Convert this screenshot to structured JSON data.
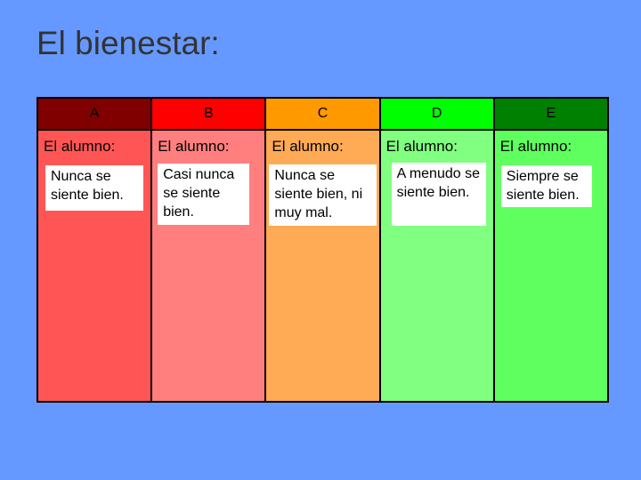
{
  "slide": {
    "title": "El bienestar:"
  },
  "columns": [
    {
      "letter": "A",
      "subtitle": "El alumno:",
      "description": "Nunca se siente bien.",
      "header_color": "#800000",
      "body_color": "#ff5555"
    },
    {
      "letter": "B",
      "subtitle": "El alumno:",
      "description": "Casi nunca se siente bien.",
      "header_color": "#ff0000",
      "body_color": "#ff7f7f"
    },
    {
      "letter": "C",
      "subtitle": "El alumno:",
      "description": "Nunca se siente bien, ni muy mal.",
      "header_color": "#ff9900",
      "body_color": "#ffaa55"
    },
    {
      "letter": "D",
      "subtitle": "El alumno:",
      "description": "A menudo se siente bien.",
      "header_color": "#00ff00",
      "body_color": "#80ff80"
    },
    {
      "letter": "E",
      "subtitle": "El alumno:",
      "description": "Siempre se siente bien.",
      "header_color": "#008000",
      "body_color": "#5fff5f"
    }
  ]
}
